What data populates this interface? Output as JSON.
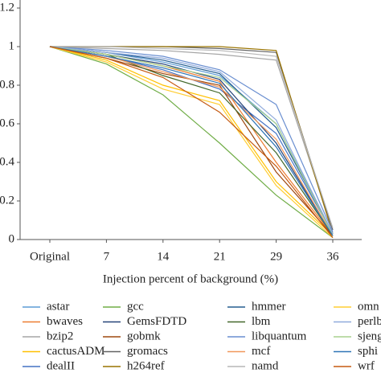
{
  "chart_data": {
    "type": "line",
    "x_label": "Injection percent of background (%)",
    "categories": [
      "Original",
      "7",
      "14",
      "21",
      "29",
      "36"
    ],
    "ylim": [
      0,
      1.2
    ],
    "yticks": [
      0,
      0.2,
      0.4,
      0.6,
      0.8,
      1,
      1.2
    ],
    "series": [
      {
        "name": "astar",
        "color": "#5b9bd5",
        "values": [
          1,
          0.97,
          0.92,
          0.85,
          0.6,
          0.03
        ]
      },
      {
        "name": "bwaves",
        "color": "#ed7d31",
        "values": [
          1,
          0.96,
          0.9,
          0.82,
          0.4,
          0.02
        ]
      },
      {
        "name": "bzip2",
        "color": "#a5a5a5",
        "values": [
          1,
          0.99,
          0.98,
          0.96,
          0.93,
          0.05
        ]
      },
      {
        "name": "cactusADM",
        "color": "#ffc000",
        "values": [
          1,
          0.93,
          0.8,
          0.72,
          0.3,
          0.02
        ]
      },
      {
        "name": "dealII",
        "color": "#4472c4",
        "values": [
          1,
          0.95,
          0.88,
          0.78,
          0.55,
          0.03
        ]
      },
      {
        "name": "gcc",
        "color": "#70ad47",
        "values": [
          1,
          0.91,
          0.75,
          0.5,
          0.23,
          0.01
        ]
      },
      {
        "name": "GemsFDTD",
        "color": "#264478",
        "values": [
          1,
          0.96,
          0.91,
          0.83,
          0.5,
          0.02
        ]
      },
      {
        "name": "gobmk",
        "color": "#9e480e",
        "values": [
          1,
          0.94,
          0.86,
          0.8,
          0.35,
          0.02
        ]
      },
      {
        "name": "gromacs",
        "color": "#636363",
        "values": [
          1,
          1,
          1,
          0.99,
          0.97,
          0.05
        ]
      },
      {
        "name": "h264ref",
        "color": "#997300",
        "values": [
          1,
          1,
          1,
          1,
          0.98,
          0.03
        ]
      },
      {
        "name": "hmmer",
        "color": "#255e91",
        "values": [
          1,
          0.97,
          0.93,
          0.86,
          0.58,
          0.03
        ]
      },
      {
        "name": "lbm",
        "color": "#43682b",
        "values": [
          1,
          0.96,
          0.85,
          0.76,
          0.45,
          0.02
        ]
      },
      {
        "name": "libquantum",
        "color": "#698ed0",
        "values": [
          1,
          0.98,
          0.95,
          0.88,
          0.7,
          0.04
        ]
      },
      {
        "name": "mcf",
        "color": "#f1975a",
        "values": [
          1,
          0.95,
          0.87,
          0.79,
          0.52,
          0.02
        ]
      },
      {
        "name": "namd",
        "color": "#b7b7b7",
        "values": [
          1,
          1,
          0.99,
          0.98,
          0.95,
          0.06
        ]
      },
      {
        "name": "omn",
        "color": "#ffcd33",
        "values": [
          1,
          0.92,
          0.78,
          0.7,
          0.28,
          0.01
        ]
      },
      {
        "name": "perlb",
        "color": "#8faadc",
        "values": [
          1,
          0.97,
          0.94,
          0.87,
          0.62,
          0.03
        ]
      },
      {
        "name": "sjeng",
        "color": "#a9d18e",
        "values": [
          1,
          0.96,
          0.9,
          0.84,
          0.6,
          0.02
        ]
      },
      {
        "name": "sphi",
        "color": "#2e75b6",
        "values": [
          1,
          0.95,
          0.89,
          0.81,
          0.48,
          0.02
        ]
      },
      {
        "name": "wrf",
        "color": "#c55a11",
        "values": [
          1,
          0.94,
          0.84,
          0.66,
          0.38,
          0.01
        ]
      }
    ]
  }
}
